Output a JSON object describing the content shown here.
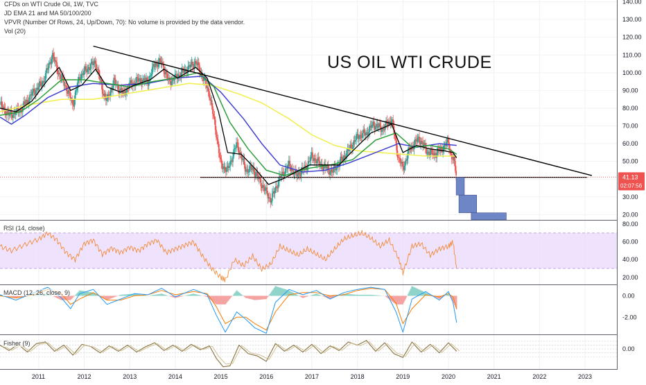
{
  "header": {
    "symbol_line": "CFDs on WTI Crude Oil, 1W, TVC",
    "indicator_1": "JD EMA 21 and MA 50/100/200",
    "indicator_2": "VPVR (Number Of Rows, 24, Up/Down, 70): No volume is provided by the data vendor.",
    "indicator_3": "Vol (20)"
  },
  "annotation_title": "US OIL WTI CRUDE",
  "price_badge": {
    "value": "41.13",
    "countdown": "02:07:56",
    "color": "#ef5350"
  },
  "panes": {
    "rsi_label": "RSI (14, close)",
    "macd_label": "MACD (12, 26, close, 9)",
    "fisher_label": "Fisher (9)"
  },
  "colors": {
    "up": "#26a69a",
    "down": "#ef5350",
    "ema21": "#000000",
    "ma50": "#2e9e3a",
    "ma100": "#3f3fd0",
    "ma200": "#f2ef55",
    "rsi": "#f28b38",
    "rsi_band": "#e9d8fb",
    "macd": "#2196f3",
    "signal": "#f57c00",
    "fisher": "#8d7a4a",
    "vpvr": "#6f86c6"
  },
  "chart_data": [
    {
      "type": "candlestick",
      "panel": "price",
      "ylim": [
        17,
        141
      ],
      "y_ticks": [
        "140.00",
        "130.00",
        "120.00",
        "110.00",
        "100.00",
        "90.00",
        "80.00",
        "70.00",
        "60.00",
        "50.00",
        "40.00",
        "30.00",
        "20.00"
      ],
      "y_tick_values": [
        140,
        130,
        120,
        110,
        100,
        90,
        80,
        70,
        60,
        50,
        40,
        30,
        20
      ],
      "xlim": [
        2010.15,
        2023.7
      ],
      "x_ticks": [
        "2011",
        "2012",
        "2013",
        "2014",
        "2015",
        "2016",
        "2017",
        "2018",
        "2019",
        "2020",
        "2021",
        "2022",
        "2023"
      ],
      "x_tick_values": [
        2011,
        2012,
        2013,
        2014,
        2015,
        2016,
        2017,
        2018,
        2019,
        2020,
        2021,
        2022,
        2023
      ],
      "close_path": [
        [
          2010.15,
          82
        ],
        [
          2010.35,
          76
        ],
        [
          2010.6,
          79
        ],
        [
          2010.85,
          88
        ],
        [
          2011.1,
          95
        ],
        [
          2011.3,
          110
        ],
        [
          2011.45,
          99
        ],
        [
          2011.6,
          92
        ],
        [
          2011.75,
          82
        ],
        [
          2011.9,
          98
        ],
        [
          2012.1,
          103
        ],
        [
          2012.25,
          106
        ],
        [
          2012.4,
          90
        ],
        [
          2012.5,
          84
        ],
        [
          2012.65,
          95
        ],
        [
          2012.85,
          88
        ],
        [
          2013.0,
          93
        ],
        [
          2013.2,
          96
        ],
        [
          2013.4,
          95
        ],
        [
          2013.55,
          105
        ],
        [
          2013.7,
          106
        ],
        [
          2013.85,
          95
        ],
        [
          2014.0,
          97
        ],
        [
          2014.2,
          101
        ],
        [
          2014.45,
          106
        ],
        [
          2014.6,
          98
        ],
        [
          2014.75,
          88
        ],
        [
          2014.9,
          66
        ],
        [
          2015.0,
          48
        ],
        [
          2015.15,
          45
        ],
        [
          2015.35,
          60
        ],
        [
          2015.55,
          45
        ],
        [
          2015.7,
          46
        ],
        [
          2015.9,
          37
        ],
        [
          2016.1,
          28
        ],
        [
          2016.3,
          41
        ],
        [
          2016.5,
          48
        ],
        [
          2016.65,
          42
        ],
        [
          2016.85,
          46
        ],
        [
          2017.0,
          53
        ],
        [
          2017.2,
          48
        ],
        [
          2017.45,
          44
        ],
        [
          2017.6,
          49
        ],
        [
          2017.8,
          56
        ],
        [
          2018.0,
          64
        ],
        [
          2018.2,
          66
        ],
        [
          2018.35,
          71
        ],
        [
          2018.55,
          68
        ],
        [
          2018.75,
          74
        ],
        [
          2018.9,
          52
        ],
        [
          2019.0,
          46
        ],
        [
          2019.15,
          57
        ],
        [
          2019.35,
          63
        ],
        [
          2019.55,
          55
        ],
        [
          2019.7,
          54
        ],
        [
          2019.85,
          57
        ],
        [
          2020.0,
          61
        ],
        [
          2020.05,
          54
        ],
        [
          2020.12,
          50
        ],
        [
          2020.18,
          41.13
        ]
      ],
      "ema21_path": [
        [
          2010.15,
          80
        ],
        [
          2010.5,
          78
        ],
        [
          2010.85,
          84
        ],
        [
          2011.2,
          96
        ],
        [
          2011.45,
          103
        ],
        [
          2011.7,
          90
        ],
        [
          2011.95,
          93
        ],
        [
          2012.25,
          102
        ],
        [
          2012.5,
          92
        ],
        [
          2012.8,
          89
        ],
        [
          2013.1,
          93
        ],
        [
          2013.45,
          96
        ],
        [
          2013.75,
          102
        ],
        [
          2014.05,
          97
        ],
        [
          2014.45,
          103
        ],
        [
          2014.7,
          97
        ],
        [
          2014.95,
          78
        ],
        [
          2015.15,
          55
        ],
        [
          2015.45,
          54
        ],
        [
          2015.75,
          46
        ],
        [
          2016.05,
          37
        ],
        [
          2016.35,
          40
        ],
        [
          2016.65,
          44
        ],
        [
          2016.95,
          48
        ],
        [
          2017.3,
          48
        ],
        [
          2017.6,
          48
        ],
        [
          2017.9,
          56
        ],
        [
          2018.3,
          66
        ],
        [
          2018.75,
          71
        ],
        [
          2019.0,
          55
        ],
        [
          2019.3,
          59
        ],
        [
          2019.6,
          57
        ],
        [
          2019.9,
          56
        ],
        [
          2020.1,
          55
        ],
        [
          2020.18,
          52
        ]
      ],
      "ma50_path": [
        [
          2010.15,
          76
        ],
        [
          2010.6,
          78
        ],
        [
          2011.0,
          85
        ],
        [
          2011.5,
          96
        ],
        [
          2012.0,
          96
        ],
        [
          2012.5,
          94
        ],
        [
          2013.0,
          92
        ],
        [
          2013.5,
          95
        ],
        [
          2014.0,
          97
        ],
        [
          2014.5,
          100
        ],
        [
          2014.85,
          92
        ],
        [
          2015.2,
          72
        ],
        [
          2015.6,
          57
        ],
        [
          2016.0,
          45
        ],
        [
          2016.4,
          42
        ],
        [
          2016.9,
          46
        ],
        [
          2017.4,
          48
        ],
        [
          2017.9,
          51
        ],
        [
          2018.4,
          62
        ],
        [
          2018.85,
          66
        ],
        [
          2019.2,
          58
        ],
        [
          2019.6,
          59
        ],
        [
          2020.0,
          57
        ],
        [
          2020.18,
          54
        ]
      ],
      "ma100_path": [
        [
          2010.15,
          75
        ],
        [
          2010.4,
          71
        ],
        [
          2010.7,
          76
        ],
        [
          2011.2,
          86
        ],
        [
          2011.7,
          92
        ],
        [
          2012.2,
          94
        ],
        [
          2012.8,
          93
        ],
        [
          2013.4,
          94
        ],
        [
          2014.0,
          97
        ],
        [
          2014.6,
          98
        ],
        [
          2015.0,
          89
        ],
        [
          2015.5,
          74
        ],
        [
          2015.9,
          60
        ],
        [
          2016.3,
          48
        ],
        [
          2016.8,
          44
        ],
        [
          2017.3,
          45
        ],
        [
          2017.8,
          49
        ],
        [
          2018.4,
          55
        ],
        [
          2018.9,
          60
        ],
        [
          2019.3,
          58
        ],
        [
          2019.8,
          60
        ],
        [
          2020.18,
          59
        ]
      ],
      "ma200_path": [
        [
          2010.15,
          78
        ],
        [
          2010.8,
          82
        ],
        [
          2011.5,
          85
        ],
        [
          2012.2,
          85
        ],
        [
          2012.9,
          88
        ],
        [
          2013.6,
          91
        ],
        [
          2014.3,
          94
        ],
        [
          2014.8,
          93
        ],
        [
          2015.4,
          88
        ],
        [
          2015.9,
          83
        ],
        [
          2016.5,
          74
        ],
        [
          2017.0,
          65
        ],
        [
          2017.5,
          59
        ],
        [
          2018.0,
          56
        ],
        [
          2018.5,
          55
        ],
        [
          2019.0,
          54
        ],
        [
          2019.5,
          53
        ],
        [
          2020.0,
          53
        ],
        [
          2020.18,
          53
        ]
      ],
      "trendline_upper": [
        [
          2012.2,
          115
        ],
        [
          2023.15,
          42
        ]
      ],
      "trendline_support": [
        [
          2014.55,
          41
        ],
        [
          2023.05,
          41
        ]
      ],
      "vpvr_blocks": [
        {
          "x0": 2020.17,
          "x1": 2020.35,
          "y0": 41,
          "y1": 31
        },
        {
          "x0": 2020.23,
          "x1": 2020.62,
          "y0": 31,
          "y1": 21
        },
        {
          "x0": 2020.5,
          "x1": 2021.27,
          "y0": 21,
          "y1": 13
        }
      ]
    },
    {
      "type": "line",
      "panel": "rsi",
      "name": "RSI (14, close)",
      "ylim": [
        12,
        84
      ],
      "y_ticks": [
        "80.00",
        "60.00",
        "40.00",
        "20.00"
      ],
      "y_tick_values": [
        80,
        60,
        40,
        20
      ],
      "band": [
        30,
        70
      ],
      "x": [
        2010.15,
        2010.4,
        2010.7,
        2011.0,
        2011.2,
        2011.4,
        2011.6,
        2011.8,
        2012.0,
        2012.2,
        2012.4,
        2012.6,
        2012.8,
        2013.0,
        2013.2,
        2013.4,
        2013.6,
        2013.8,
        2014.0,
        2014.2,
        2014.4,
        2014.6,
        2014.8,
        2015.0,
        2015.1,
        2015.3,
        2015.5,
        2015.7,
        2015.9,
        2016.1,
        2016.3,
        2016.5,
        2016.7,
        2016.9,
        2017.1,
        2017.3,
        2017.5,
        2017.7,
        2017.9,
        2018.1,
        2018.3,
        2018.5,
        2018.7,
        2018.9,
        2019.0,
        2019.2,
        2019.4,
        2019.6,
        2019.8,
        2020.0,
        2020.1,
        2020.18
      ],
      "y": [
        55,
        50,
        57,
        63,
        70,
        62,
        48,
        40,
        58,
        62,
        46,
        53,
        48,
        54,
        50,
        58,
        62,
        48,
        52,
        56,
        60,
        44,
        30,
        20,
        17,
        40,
        33,
        44,
        29,
        35,
        55,
        50,
        45,
        52,
        46,
        40,
        52,
        63,
        67,
        70,
        64,
        55,
        62,
        42,
        25,
        55,
        58,
        45,
        52,
        55,
        60,
        30
      ]
    },
    {
      "type": "line",
      "panel": "macd",
      "name": "MACD (12, 26, close, 9)",
      "ylim": [
        -3.6,
        1.0
      ],
      "y_ticks": [
        "0.00",
        "-2.00"
      ],
      "y_tick_values": [
        0,
        -2
      ],
      "x": [
        2010.15,
        2010.5,
        2010.9,
        2011.2,
        2011.5,
        2011.7,
        2011.9,
        2012.2,
        2012.5,
        2012.8,
        2013.1,
        2013.4,
        2013.7,
        2014.0,
        2014.4,
        2014.7,
        2014.9,
        2015.1,
        2015.35,
        2015.55,
        2015.75,
        2016.0,
        2016.2,
        2016.5,
        2016.8,
        2017.1,
        2017.4,
        2017.7,
        2018.0,
        2018.3,
        2018.6,
        2018.85,
        2019.0,
        2019.2,
        2019.5,
        2019.8,
        2020.0,
        2020.1,
        2020.18
      ],
      "series": [
        {
          "name": "MACD",
          "values": [
            0.1,
            -0.4,
            0.3,
            0.8,
            -0.2,
            -1.2,
            0.2,
            0.6,
            -0.8,
            -0.3,
            0.2,
            0.1,
            0.7,
            -0.1,
            0.6,
            0.1,
            -1.8,
            -3.4,
            -1.5,
            -2.2,
            -3.0,
            -3.5,
            -0.6,
            0.6,
            0.1,
            0.5,
            -0.3,
            0.3,
            0.6,
            0.8,
            0.6,
            -1.5,
            -3.4,
            -0.3,
            0.4,
            -0.4,
            0.4,
            -0.6,
            -2.5
          ]
        },
        {
          "name": "Signal",
          "values": [
            0.0,
            -0.2,
            0.1,
            0.6,
            0.2,
            -0.8,
            -0.3,
            0.3,
            -0.4,
            -0.4,
            0.0,
            0.1,
            0.5,
            0.1,
            0.4,
            0.2,
            -1.0,
            -2.6,
            -2.0,
            -2.0,
            -2.6,
            -3.2,
            -1.5,
            0.1,
            0.3,
            0.3,
            0.0,
            0.1,
            0.5,
            0.7,
            0.6,
            -0.7,
            -2.6,
            -1.2,
            0.1,
            -0.1,
            0.2,
            -0.1,
            -1.2
          ]
        },
        {
          "name": "Histogram",
          "values": [
            0.1,
            -0.2,
            0.2,
            0.2,
            -0.4,
            -0.4,
            0.5,
            0.3,
            -0.4,
            0.1,
            0.2,
            0.0,
            0.2,
            -0.2,
            0.2,
            -0.1,
            -0.8,
            -0.8,
            0.5,
            -0.2,
            -0.4,
            -0.3,
            0.9,
            0.5,
            -0.2,
            0.2,
            -0.3,
            0.2,
            0.1,
            0.1,
            0.0,
            -0.8,
            -0.8,
            0.9,
            0.3,
            -0.3,
            0.2,
            -0.5,
            -1.3
          ]
        }
      ]
    },
    {
      "type": "line",
      "panel": "fisher",
      "name": "Fisher (9)",
      "ylim": [
        -2.6,
        1.8
      ],
      "y_ticks": [
        "0.00"
      ],
      "y_tick_values": [
        0
      ],
      "x": [
        2010.15,
        2010.35,
        2010.55,
        2010.75,
        2010.95,
        2011.15,
        2011.35,
        2011.55,
        2011.75,
        2011.95,
        2012.15,
        2012.35,
        2012.55,
        2012.75,
        2012.95,
        2013.15,
        2013.35,
        2013.55,
        2013.75,
        2013.95,
        2014.15,
        2014.35,
        2014.55,
        2014.75,
        2014.9,
        2015.05,
        2015.2,
        2015.4,
        2015.6,
        2015.8,
        2016.0,
        2016.2,
        2016.4,
        2016.6,
        2016.8,
        2017.0,
        2017.2,
        2017.4,
        2017.6,
        2017.8,
        2018.0,
        2018.2,
        2018.4,
        2018.6,
        2018.8,
        2019.0,
        2019.2,
        2019.4,
        2019.6,
        2019.8,
        2020.0,
        2020.18
      ],
      "y": [
        0.5,
        -0.2,
        0.6,
        -0.4,
        0.7,
        0.9,
        -0.3,
        0.5,
        -0.8,
        0.6,
        0.3,
        -0.5,
        0.4,
        -0.3,
        0.5,
        -0.4,
        0.3,
        0.8,
        -0.2,
        0.5,
        -0.3,
        0.6,
        -0.1,
        0.4,
        -1.2,
        -2.3,
        -2.2,
        0.5,
        -0.6,
        -0.9,
        -1.6,
        0.7,
        -0.3,
        0.5,
        -0.4,
        0.6,
        -0.6,
        0.4,
        -0.2,
        0.9,
        0.5,
        1.1,
        -0.3,
        0.8,
        -0.6,
        -1.1,
        0.9,
        -0.4,
        0.6,
        -0.5,
        0.8,
        -0.3
      ]
    }
  ]
}
